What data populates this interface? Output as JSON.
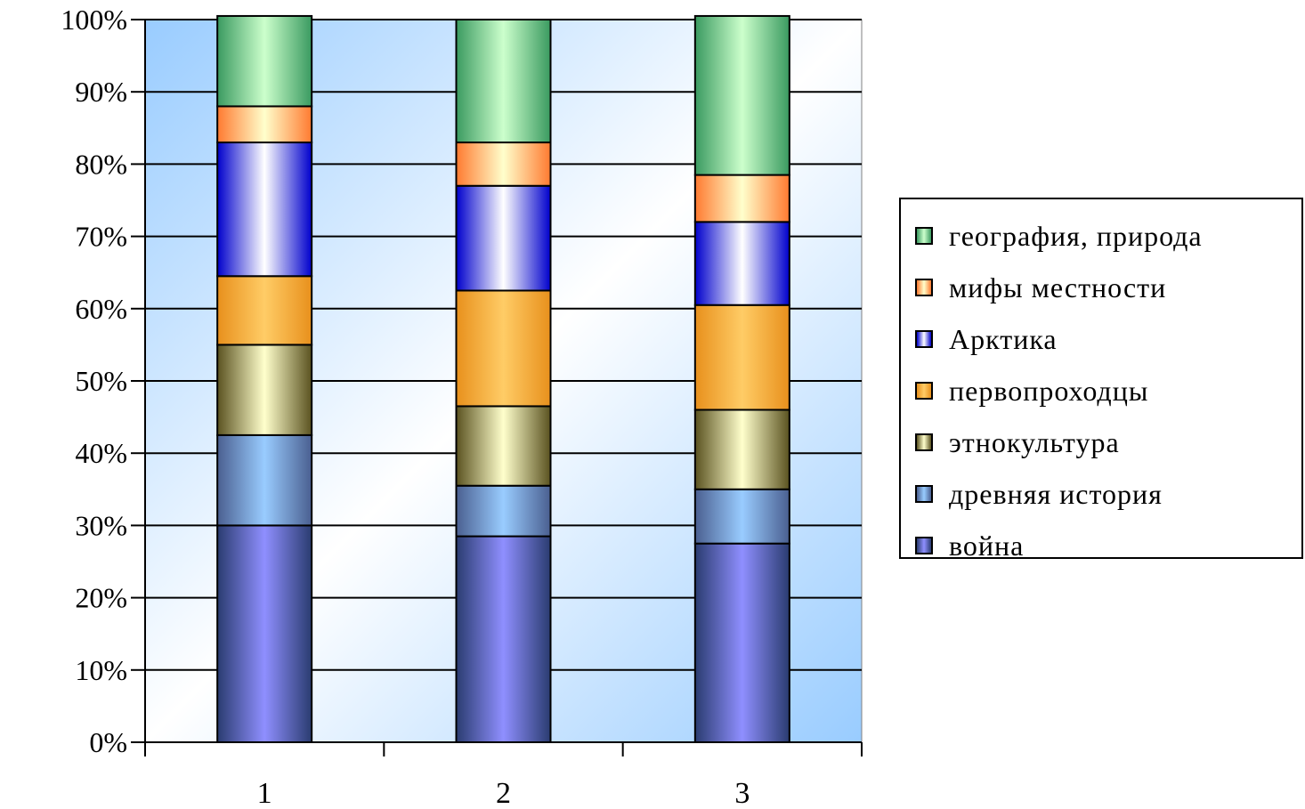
{
  "chart_data": {
    "type": "bar",
    "stacked": "percent",
    "categories": [
      "1",
      "2",
      "3"
    ],
    "yticks": [
      "0%",
      "10%",
      "20%",
      "30%",
      "40%",
      "50%",
      "60%",
      "70%",
      "80%",
      "90%",
      "100%"
    ],
    "ylim": [
      0,
      100
    ],
    "grid": true,
    "legend_position": "right",
    "series": [
      {
        "name": "война",
        "values": [
          30,
          28.5,
          27.5
        ],
        "color": "#8f8fff",
        "dark": "#2a3c70"
      },
      {
        "name": "древняя история",
        "values": [
          12.5,
          7,
          7.5
        ],
        "color": "#99ccff",
        "dark": "#4a5f90"
      },
      {
        "name": "этнокультура",
        "values": [
          12.5,
          11,
          11
        ],
        "color": "#ffffcc",
        "dark": "#5a5220"
      },
      {
        "name": "первопроходцы",
        "values": [
          9.5,
          16,
          14.5
        ],
        "color": "#ffcc66",
        "dark": "#e8901c"
      },
      {
        "name": "Арктика",
        "values": [
          18.5,
          14.5,
          11.5
        ],
        "color": "#ffffff",
        "dark": "#0000cc"
      },
      {
        "name": "мифы местности",
        "values": [
          5,
          6,
          6.5
        ],
        "color": "#ffffcc",
        "dark": "#ff7a30"
      },
      {
        "name": "география, природа",
        "values": [
          12.5,
          17,
          22
        ],
        "color": "#ccffcc",
        "dark": "#3a9a60"
      }
    ]
  }
}
